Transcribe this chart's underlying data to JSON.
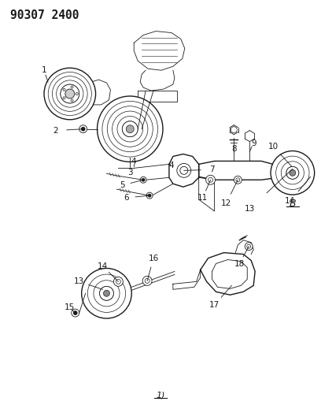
{
  "title": "90307 2400",
  "bg_color": "#ffffff",
  "line_color": "#1a1a1a",
  "fig_width": 4.08,
  "fig_height": 5.33,
  "dpi": 100
}
